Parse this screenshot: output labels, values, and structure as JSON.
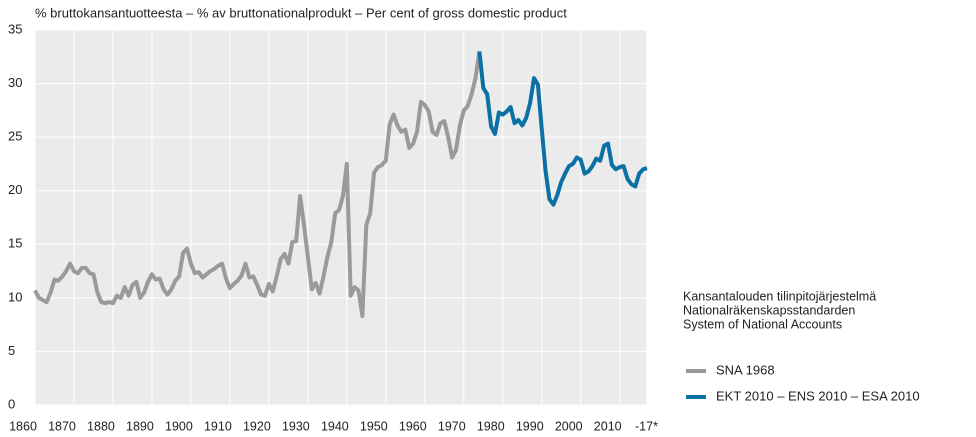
{
  "chart_data": {
    "type": "line",
    "title": "% bruttokansantuotteesta – % av bruttonationalprodukt – Per cent of gross domestic product",
    "legend_title": [
      "Kansantalouden tilinpitojärjestelmä",
      "Nationalräkenskapsstandarden",
      "System of National Accounts"
    ],
    "xlim": [
      1860,
      2017
    ],
    "xticks": [
      1860,
      1870,
      1880,
      1890,
      1900,
      1910,
      1920,
      1930,
      1940,
      1950,
      1960,
      1970,
      1980,
      1990,
      2000,
      2010,
      {
        "value": 2017,
        "label": "-17*"
      }
    ],
    "ylim": [
      0,
      35
    ],
    "yticks": [
      0,
      5,
      10,
      15,
      20,
      25,
      30,
      35
    ],
    "grid": true,
    "series": [
      {
        "name": "SNA 1968",
        "color": "#9a9a9c",
        "x": [
          1860,
          1861,
          1862,
          1863,
          1864,
          1865,
          1866,
          1867,
          1868,
          1869,
          1870,
          1871,
          1872,
          1873,
          1874,
          1875,
          1876,
          1877,
          1878,
          1879,
          1880,
          1881,
          1882,
          1883,
          1884,
          1885,
          1886,
          1887,
          1888,
          1889,
          1890,
          1891,
          1892,
          1893,
          1894,
          1895,
          1896,
          1897,
          1898,
          1899,
          1900,
          1901,
          1902,
          1903,
          1904,
          1905,
          1906,
          1907,
          1908,
          1909,
          1910,
          1911,
          1912,
          1913,
          1914,
          1915,
          1916,
          1917,
          1918,
          1919,
          1920,
          1921,
          1922,
          1923,
          1924,
          1925,
          1926,
          1927,
          1928,
          1929,
          1930,
          1931,
          1932,
          1933,
          1934,
          1935,
          1936,
          1937,
          1938,
          1939,
          1940,
          1941,
          1942,
          1943,
          1944,
          1945,
          1946,
          1947,
          1948,
          1949,
          1950,
          1951,
          1952,
          1953,
          1954,
          1955,
          1956,
          1957,
          1958,
          1959,
          1960,
          1961,
          1962,
          1963,
          1964,
          1965,
          1966,
          1967,
          1968,
          1969,
          1970,
          1971,
          1972,
          1973,
          1974
        ],
        "values": [
          10.7,
          10,
          9.8,
          9.6,
          10.5,
          11.7,
          11.6,
          12,
          12.5,
          13.2,
          12.5,
          12.3,
          12.8,
          12.8,
          12.3,
          12.2,
          10.5,
          9.6,
          9.5,
          9.6,
          9.5,
          10.2,
          10,
          11,
          10.2,
          11.2,
          11.5,
          10,
          10.5,
          11.5,
          12.2,
          11.7,
          11.8,
          10.8,
          10.3,
          10.8,
          11.6,
          12,
          14.2,
          14.6,
          13.2,
          12.3,
          12.4,
          11.9,
          12.2,
          12.5,
          12.7,
          13,
          13.2,
          11.8,
          10.9,
          11.3,
          11.6,
          12.1,
          13.2,
          11.9,
          12,
          11.2,
          10.3,
          10.2,
          11.3,
          10.6,
          12,
          13.6,
          14.1,
          13.2,
          15.2,
          15.3,
          19.5,
          16.8,
          13.8,
          10.8,
          11.4,
          10.4,
          12,
          13.8,
          15.2,
          17.9,
          18.2,
          19.5,
          22.5,
          10.2,
          11,
          10.7,
          8.3,
          16.8,
          17.9,
          21.7,
          22.2,
          22.4,
          22.8,
          26.2,
          27.1,
          26.1,
          25.5,
          25.7,
          24,
          24.4,
          25.5,
          28.3,
          28,
          27.4,
          25.5,
          25.2,
          26.3,
          26.5,
          25,
          23.1,
          23.8,
          26.1,
          27.5,
          27.9,
          29,
          30.5,
          33
        ]
      },
      {
        "name": "EKT 2010 – ENS 2010 – ESA 2010",
        "color": "#0b70a3",
        "x": [
          1974,
          1975,
          1976,
          1977,
          1978,
          1979,
          1980,
          1981,
          1982,
          1983,
          1984,
          1985,
          1986,
          1987,
          1988,
          1989,
          1990,
          1991,
          1992,
          1993,
          1994,
          1995,
          1996,
          1997,
          1998,
          1999,
          2000,
          2001,
          2002,
          2003,
          2004,
          2005,
          2006,
          2007,
          2008,
          2009,
          2010,
          2011,
          2012,
          2013,
          2014,
          2015,
          2016,
          2017
        ],
        "values": [
          33,
          29.6,
          29,
          26,
          25.3,
          27.3,
          27.1,
          27.4,
          27.8,
          26.3,
          26.6,
          26.1,
          26.8,
          28.2,
          30.5,
          29.9,
          25.7,
          21.8,
          19.2,
          18.7,
          19.6,
          20.8,
          21.6,
          22.3,
          22.5,
          23.1,
          22.9,
          21.6,
          21.8,
          22.3,
          23,
          22.8,
          24.2,
          24.4,
          22.4,
          22,
          22.2,
          22.3,
          21.1,
          20.6,
          20.4,
          21.6,
          22,
          22.1
        ]
      }
    ]
  }
}
